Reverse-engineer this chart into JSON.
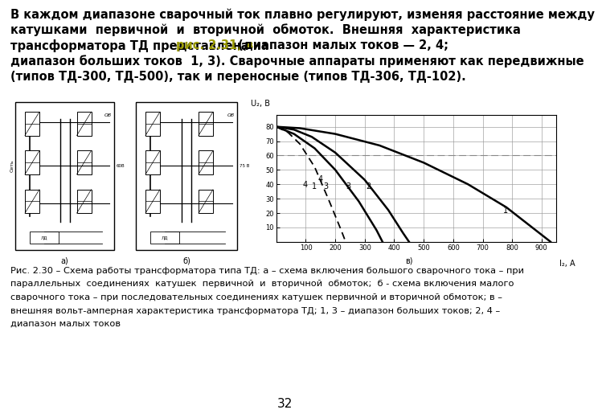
{
  "text_lines": [
    {
      "text": "В каждом диапазоне сварочный ток плавно регулируют, изменяя расстояние между",
      "color": "#000000"
    },
    {
      "text": "катушками  первичной  и  вторичной  обмоток.  Внешняя  характеристика",
      "color": "#000000"
    },
    {
      "text": "трансформатора ТД представлена на ",
      "color": "#000000",
      "link": "рис. 2.31, в",
      "after": " (диапазон малых токов — 2, 4;"
    },
    {
      "text": "диапазон больших токов  1, 3). Сварочные аппараты применяют как передвижные",
      "color": "#000000"
    },
    {
      "text": "(типов ТД-300, ТД-500), так и переносные (типов ТД-306, ТД-102).",
      "color": "#000000"
    }
  ],
  "caption_lines": [
    "Рис. 2.30 – Схема работы трансформатора типа ТД: а – схема включения большого сварочного тока – при",
    "параллельных  соединениях  катушек  первичной  и  вторичной  обмоток;  б - схема включения малого",
    "сварочного тока – при последовательных соединениях катушек первичной и вторичной обмоток; в –",
    "внешняя вольт-амперная характеристика трансформатора ТД; 1, 3 – диапазон больших токов; 2, 4 –",
    "диапазон малых токов"
  ],
  "page_number": "32",
  "graph_ylabel": "U₂, В",
  "graph_xlabel": "I₂, A",
  "graph_yticks": [
    10,
    20,
    30,
    40,
    50,
    60,
    70,
    80
  ],
  "graph_xticks": [
    100,
    200,
    300,
    400,
    500,
    600,
    700,
    800,
    900
  ],
  "highlight_color": "#999900",
  "text_color": "#000000",
  "bg_color": "#ffffff",
  "grid_color": "#999999",
  "text_fontsize": 10.5,
  "caption_fontsize": 8.2
}
